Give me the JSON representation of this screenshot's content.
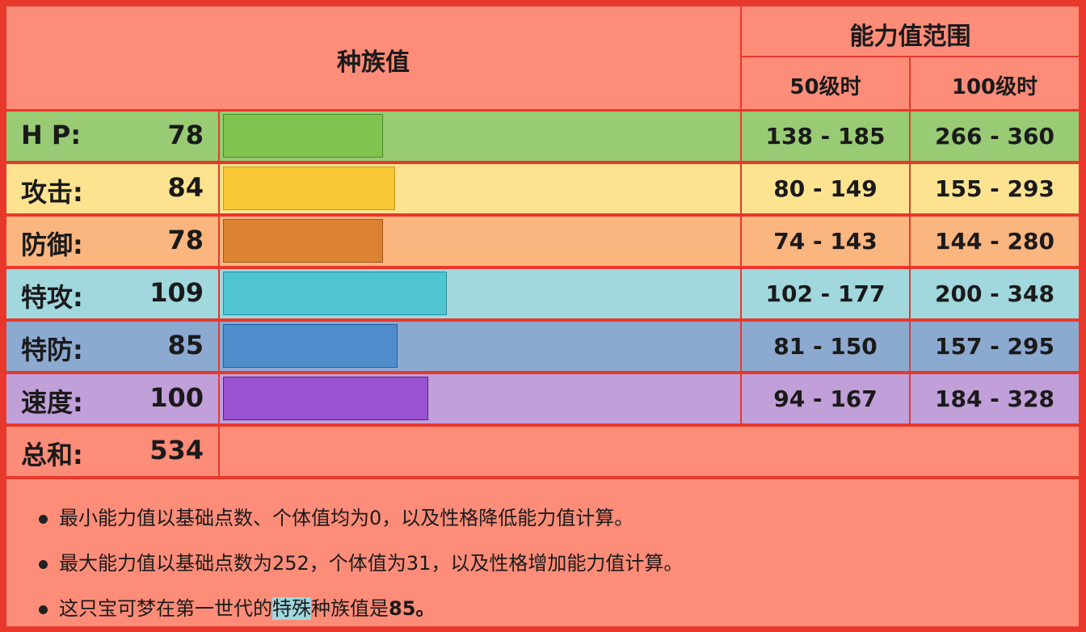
{
  "header": {
    "base_stats": "种族值",
    "stat_range": "能力值范围",
    "lv50": "50级时",
    "lv100": "100级时"
  },
  "rows": [
    {
      "label": "H P:",
      "value": 78,
      "lv50": "138 - 185",
      "lv100": "266 - 360",
      "row_color": "#98cb74",
      "bar_color": "#80c34f",
      "bar_border": "#4c8a2c"
    },
    {
      "label": "攻击:",
      "value": 84,
      "lv50": "80 - 149",
      "lv100": "155 - 293",
      "row_color": "#fde390",
      "bar_color": "#f8c735",
      "bar_border": "#c89a18"
    },
    {
      "label": "防御:",
      "value": 78,
      "lv50": "74 - 143",
      "lv100": "144 - 280",
      "row_color": "#fbb57f",
      "bar_color": "#dc8233",
      "bar_border": "#a55718"
    },
    {
      "label": "特攻:",
      "value": 109,
      "lv50": "102 - 177",
      "lv100": "200 - 348",
      "row_color": "#a0d8de",
      "bar_color": "#4fc5d2",
      "bar_border": "#258e9a"
    },
    {
      "label": "特防:",
      "value": 85,
      "lv50": "81 - 150",
      "lv100": "157 - 295",
      "row_color": "#8ca9d0",
      "bar_color": "#508dcd",
      "bar_border": "#245a9a"
    },
    {
      "label": "速度:",
      "value": 100,
      "lv50": "94 - 167",
      "lv100": "184 - 328",
      "row_color": "#c19fd9",
      "bar_color": "#9a52d0",
      "bar_border": "#5e2090"
    }
  ],
  "total": {
    "label": "总和:",
    "value": 534
  },
  "notes": [
    [
      "最小能力值以基础点数、个体值均为0，以及性格降低能力值计算。"
    ],
    [
      "最大能力值以基础点数为252，个体值为31，以及性格增加能力值计算。"
    ],
    [
      "这只宝可梦在第一世代的",
      "特殊",
      "种族值是",
      "85",
      "。"
    ]
  ]
}
